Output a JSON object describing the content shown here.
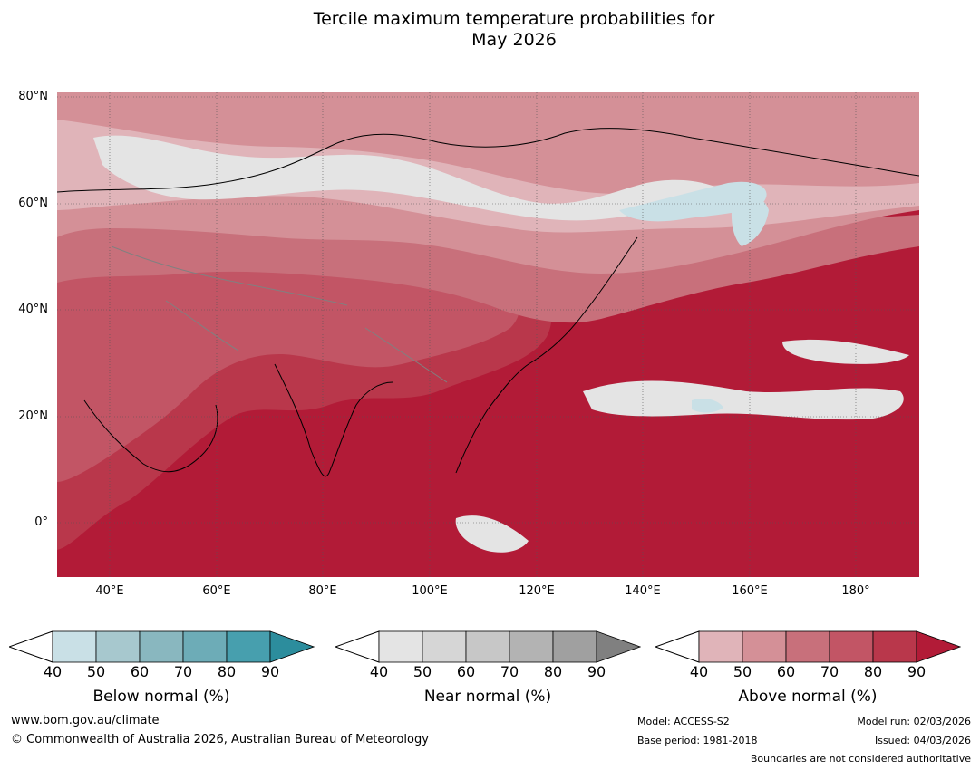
{
  "title": {
    "line1": "Tercile maximum temperature probabilities for",
    "line2": "May 2026"
  },
  "map": {
    "lat_labels": [
      "80°N",
      "60°N",
      "40°N",
      "20°N",
      "0°"
    ],
    "lon_labels": [
      "40°E",
      "60°E",
      "80°E",
      "100°E",
      "120°E",
      "140°E",
      "160°E",
      "180°"
    ],
    "colors": {
      "above_90": "#b21b37",
      "above_80": "#b9374b",
      "above_70": "#c25565",
      "above_60": "#c8707b",
      "above_50": "#d49097",
      "above_40": "#e0b4b9",
      "near": "#e4e4e4",
      "below": "#c9e0e6",
      "coast": "#000000",
      "border": "#808080"
    }
  },
  "colorbars": [
    {
      "name": "below",
      "label": "Below normal (%)",
      "ticks": [
        "40",
        "50",
        "60",
        "70",
        "80",
        "90"
      ],
      "colors": [
        "#c9e0e6",
        "#a7c8ce",
        "#89b7bf",
        "#6dacb7",
        "#479fae",
        "#2c8d9d"
      ]
    },
    {
      "name": "near",
      "label": "Near normal (%)",
      "ticks": [
        "40",
        "50",
        "60",
        "70",
        "80",
        "90"
      ],
      "colors": [
        "#e4e4e4",
        "#d6d6d6",
        "#c7c7c7",
        "#b3b3b3",
        "#a0a0a0",
        "#808080"
      ]
    },
    {
      "name": "above",
      "label": "Above normal (%)",
      "ticks": [
        "40",
        "50",
        "60",
        "70",
        "80",
        "90"
      ],
      "colors": [
        "#e0b4b9",
        "#d49097",
        "#c8707b",
        "#c25565",
        "#b9374b",
        "#b21b37"
      ]
    }
  ],
  "footer": {
    "website": "www.bom.gov.au/climate",
    "copyright": "© Commonwealth of Australia 2026, Australian Bureau of Meteorology",
    "model": "Model: ACCESS-S2",
    "base_period": "Base period: 1981-2018",
    "model_run": "Model run: 02/03/2026",
    "issued": "Issued: 04/03/2026",
    "disclaimer": "Boundaries are not considered authoritative"
  }
}
